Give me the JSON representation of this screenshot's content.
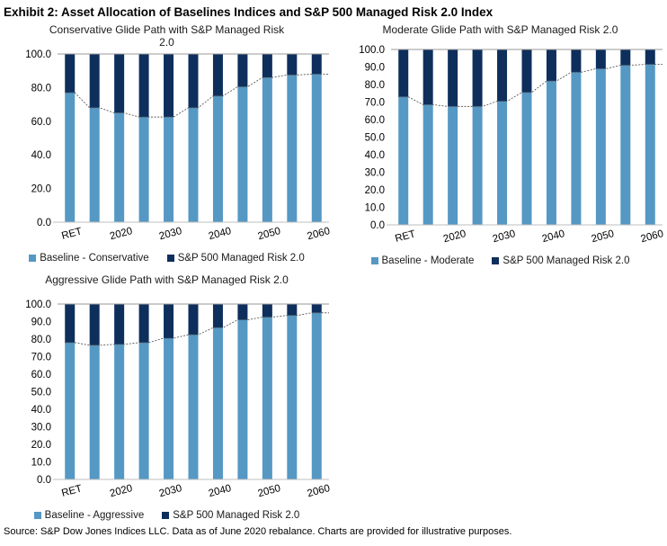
{
  "page": {
    "title": "Exhibit 2: Asset Allocation of Baselines Indices and S&P 500 Managed Risk 2.0 Index",
    "source": "Source: S&P Dow Jones Indices LLC. Data as of June 2020 rebalance. Charts are provided for illustrative purposes."
  },
  "colors": {
    "baseline": "#5598C4",
    "managed_risk": "#0E2F5C",
    "boundary_line": "#595959",
    "cap_line": "#999999",
    "axis_line": "#BFBFBF",
    "text": "#000000"
  },
  "chart_data": [
    {
      "id": "conservative",
      "type": "bar",
      "stacked": true,
      "stack_total": 100,
      "title": "Conservative Glide Path with S&P Managed Risk 2.0",
      "title_lines": [
        "Conservative Glide Path with S&P Managed Risk",
        "2.0"
      ],
      "num_bars": 11,
      "x_tick_labels": [
        "RET",
        "2020",
        "2030",
        "2040",
        "2050",
        "2060"
      ],
      "x_tick_every": 2,
      "ylim": [
        0,
        100
      ],
      "y_tick_labels": [
        "0.0",
        "20.0",
        "40.0",
        "60.0",
        "80.0",
        "100.0"
      ],
      "grid": false,
      "legend_position": "bottom",
      "series": [
        {
          "name": "Baseline - Conservative",
          "color_key": "baseline",
          "values": [
            77,
            68,
            65,
            62.5,
            62.5,
            68,
            75,
            80.5,
            86,
            87.5,
            88
          ]
        },
        {
          "name": "S&P 500 Managed Risk 2.0",
          "color_key": "managed_risk",
          "values": [
            23,
            32,
            35,
            37.5,
            37.5,
            32,
            25,
            19.5,
            14,
            12.5,
            12
          ]
        }
      ],
      "legend": [
        {
          "label": "Baseline - Conservative",
          "color_key": "baseline"
        },
        {
          "label": "S&P 500 Managed Risk 2.0",
          "color_key": "managed_risk"
        }
      ]
    },
    {
      "id": "moderate",
      "type": "bar",
      "stacked": true,
      "stack_total": 100,
      "title": "Moderate Glide Path with S&P Managed Risk 2.0",
      "title_lines": [
        "Moderate Glide Path with S&P Managed Risk 2.0"
      ],
      "num_bars": 11,
      "x_tick_labels": [
        "RET",
        "2020",
        "2030",
        "2040",
        "2050",
        "2060"
      ],
      "x_tick_every": 2,
      "ylim": [
        0,
        100
      ],
      "y_tick_labels": [
        "0.0",
        "10.0",
        "20.0",
        "30.0",
        "40.0",
        "50.0",
        "60.0",
        "70.0",
        "80.0",
        "90.0",
        "100.0"
      ],
      "grid": false,
      "legend_position": "bottom",
      "series": [
        {
          "name": "Baseline - Moderate",
          "color_key": "baseline",
          "values": [
            73,
            68.5,
            67.5,
            67.5,
            70.5,
            75.5,
            82,
            87,
            89,
            91,
            91.5
          ]
        },
        {
          "name": "S&P 500 Managed Risk 2.0",
          "color_key": "managed_risk",
          "values": [
            27,
            31.5,
            32.5,
            32.5,
            29.5,
            24.5,
            18,
            13,
            11,
            9,
            8.5
          ]
        }
      ],
      "legend": [
        {
          "label": "Baseline - Moderate",
          "color_key": "baseline"
        },
        {
          "label": "S&P 500 Managed Risk 2.0",
          "color_key": "managed_risk"
        }
      ]
    },
    {
      "id": "aggressive",
      "type": "bar",
      "stacked": true,
      "stack_total": 100,
      "title": "Aggressive Glide Path with S&P Managed Risk 2.0",
      "title_lines": [
        "Aggressive Glide Path with S&P Managed Risk 2.0"
      ],
      "num_bars": 11,
      "x_tick_labels": [
        "RET",
        "2020",
        "2030",
        "2040",
        "2050",
        "2060"
      ],
      "x_tick_every": 2,
      "ylim": [
        0,
        100
      ],
      "y_tick_labels": [
        "0.0",
        "10.0",
        "20.0",
        "30.0",
        "40.0",
        "50.0",
        "60.0",
        "70.0",
        "80.0",
        "90.0",
        "100.0"
      ],
      "grid": false,
      "legend_position": "bottom",
      "series": [
        {
          "name": "Baseline - Aggressive",
          "color_key": "baseline",
          "values": [
            78,
            76.5,
            77,
            78,
            80.5,
            82.5,
            86.5,
            91,
            92.5,
            93.5,
            95
          ]
        },
        {
          "name": "S&P 500 Managed Risk 2.0",
          "color_key": "managed_risk",
          "values": [
            22,
            23.5,
            23,
            22,
            19.5,
            17.5,
            13.5,
            9,
            7.5,
            6.5,
            5
          ]
        }
      ],
      "legend": [
        {
          "label": "Baseline - Aggressive",
          "color_key": "baseline"
        },
        {
          "label": "S&P 500 Managed Risk 2.0",
          "color_key": "managed_risk"
        }
      ]
    }
  ]
}
